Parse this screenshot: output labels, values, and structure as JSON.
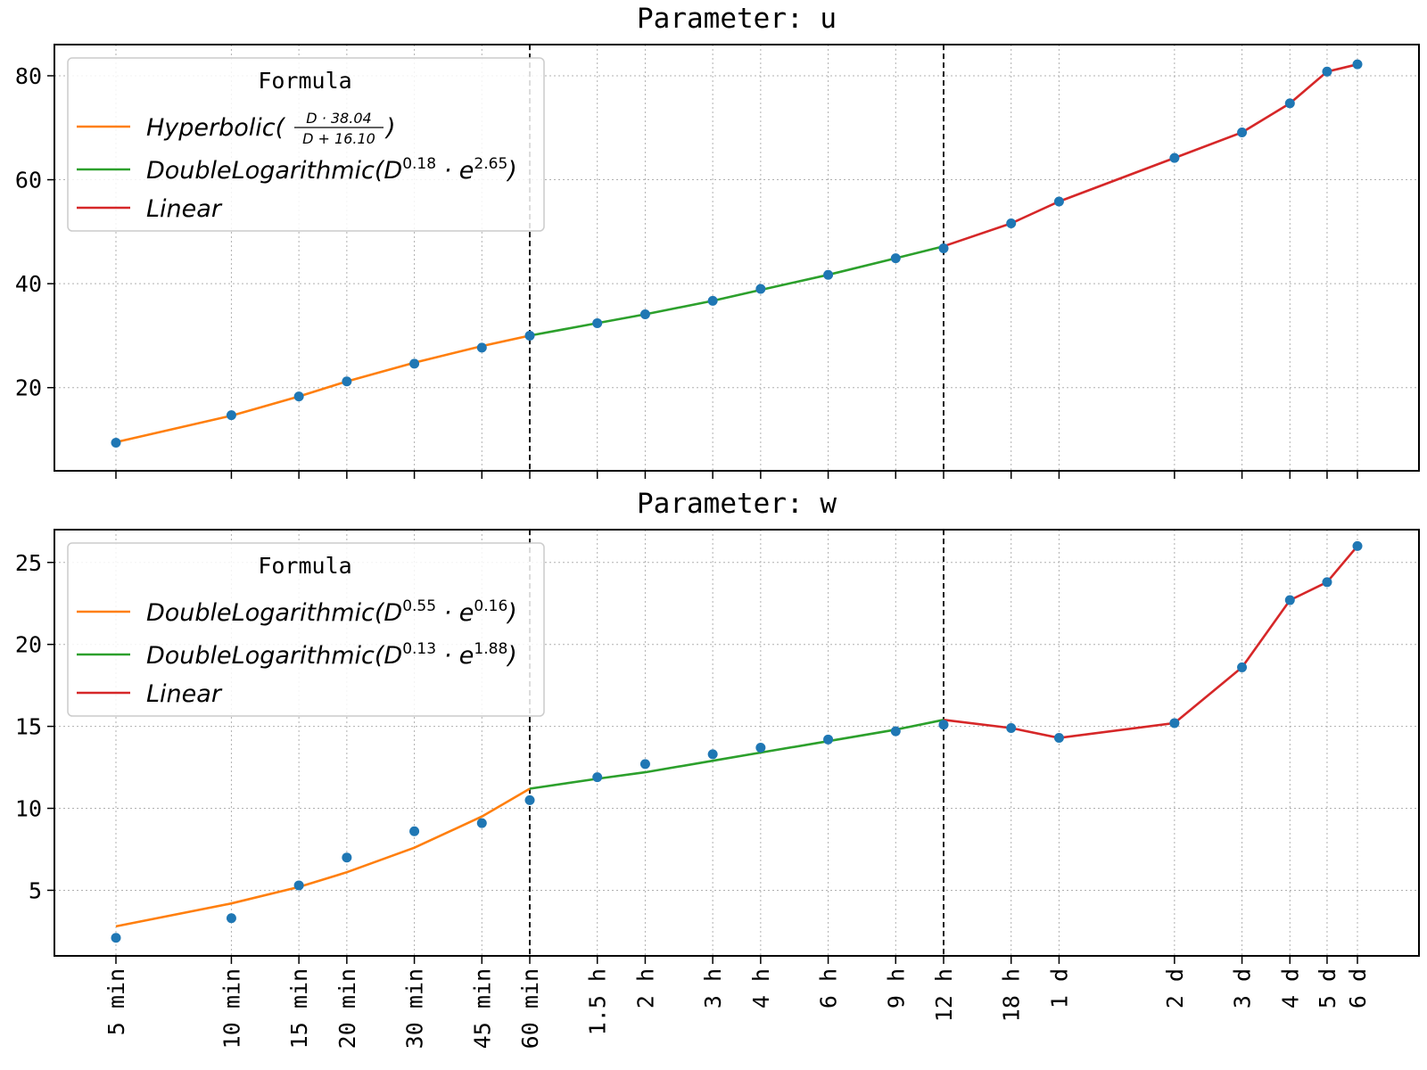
{
  "chart_data": [
    {
      "type": "line",
      "title": "Parameter: u",
      "xlabel": "",
      "ylabel": "",
      "x_tick_labels": [
        "5 min",
        "10 min",
        "15 min",
        "20 min",
        "30 min",
        "45 min",
        "60 min",
        "1.5 h",
        "2 h",
        "3 h",
        "4 h",
        "6 h",
        "9 h",
        "12 h",
        "18 h",
        "1 d",
        "2 d",
        "3 d",
        "4 d",
        "5 d",
        "6 d"
      ],
      "x_scale": "log",
      "x_minutes": [
        5,
        10,
        15,
        20,
        30,
        45,
        60,
        90,
        120,
        180,
        240,
        360,
        540,
        720,
        1080,
        1440,
        2880,
        4320,
        5760,
        7200,
        8640
      ],
      "y_ticks": [
        20,
        40,
        60,
        80
      ],
      "ylim": [
        4,
        86
      ],
      "grid": true,
      "legend": {
        "title": "Formula",
        "placement": "top-left",
        "entries": [
          {
            "name_main": "Hyperbolic(",
            "name_frac_num": "D · 38.04",
            "name_frac_den": "D + 16.10",
            "name_close": ")",
            "color": "#ff7f0e"
          },
          {
            "name_main": "DoubleLogarithmic(D",
            "exp1": "0.18",
            "mid": " · e",
            "exp2": "2.65",
            "name_close": ")",
            "color": "#2ca02c"
          },
          {
            "name_main": "Linear",
            "color": "#d62728"
          }
        ]
      },
      "vlines_at": [
        "60 min",
        "12 h"
      ],
      "points": {
        "color": "#1f77b4",
        "y": [
          9.4,
          14.7,
          18.3,
          21.2,
          24.6,
          27.7,
          30.0,
          32.4,
          34.1,
          36.7,
          39.0,
          41.7,
          44.9,
          46.8,
          51.6,
          55.8,
          64.2,
          69.1,
          74.7,
          80.8,
          82.2
        ]
      },
      "series": [
        {
          "color": "#ff7f0e",
          "x_minutes": [
            5,
            10,
            15,
            20,
            30,
            45,
            60
          ],
          "y": [
            9.5,
            14.6,
            18.3,
            21.2,
            24.8,
            28.0,
            30.0
          ]
        },
        {
          "color": "#2ca02c",
          "x_minutes": [
            60,
            90,
            120,
            180,
            240,
            360,
            540,
            720
          ],
          "y": [
            30.0,
            32.4,
            34.1,
            36.7,
            38.8,
            41.7,
            44.9,
            47.2
          ]
        },
        {
          "color": "#d62728",
          "x_minutes": [
            720,
            1080,
            1440,
            2880,
            4320,
            5760,
            7200,
            8640
          ],
          "y": [
            47.2,
            51.6,
            55.8,
            64.2,
            69.1,
            74.7,
            80.8,
            82.2
          ]
        }
      ]
    },
    {
      "type": "line",
      "title": "Parameter: w",
      "xlabel": "",
      "ylabel": "",
      "x_tick_labels": [
        "5 min",
        "10 min",
        "15 min",
        "20 min",
        "30 min",
        "45 min",
        "60 min",
        "1.5 h",
        "2 h",
        "3 h",
        "4 h",
        "6 h",
        "9 h",
        "12 h",
        "18 h",
        "1 d",
        "2 d",
        "3 d",
        "4 d",
        "5 d",
        "6 d"
      ],
      "x_scale": "log",
      "x_minutes": [
        5,
        10,
        15,
        20,
        30,
        45,
        60,
        90,
        120,
        180,
        240,
        360,
        540,
        720,
        1080,
        1440,
        2880,
        4320,
        5760,
        7200,
        8640
      ],
      "y_ticks": [
        5,
        10,
        15,
        20,
        25
      ],
      "ylim": [
        1,
        27
      ],
      "grid": true,
      "legend": {
        "title": "Formula",
        "placement": "top-left",
        "entries": [
          {
            "name_main": "DoubleLogarithmic(D",
            "exp1": "0.55",
            "mid": " · e",
            "exp2": "0.16",
            "name_close": ")",
            "color": "#ff7f0e"
          },
          {
            "name_main": "DoubleLogarithmic(D",
            "exp1": "0.13",
            "mid": " · e",
            "exp2": "1.88",
            "name_close": ")",
            "color": "#2ca02c"
          },
          {
            "name_main": "Linear",
            "color": "#d62728"
          }
        ]
      },
      "vlines_at": [
        "60 min",
        "12 h"
      ],
      "points": {
        "color": "#1f77b4",
        "y": [
          2.1,
          3.3,
          5.3,
          7.0,
          8.6,
          9.1,
          10.5,
          11.9,
          12.7,
          13.3,
          13.7,
          14.2,
          14.7,
          15.1,
          14.9,
          14.3,
          15.2,
          18.6,
          22.7,
          23.8,
          26.0
        ]
      },
      "series": [
        {
          "color": "#ff7f0e",
          "x_minutes": [
            5,
            10,
            15,
            20,
            30,
            45,
            60
          ],
          "y": [
            2.8,
            4.2,
            5.2,
            6.1,
            7.6,
            9.5,
            11.2
          ]
        },
        {
          "color": "#2ca02c",
          "x_minutes": [
            60,
            90,
            120,
            180,
            240,
            360,
            540,
            720
          ],
          "y": [
            11.2,
            11.8,
            12.2,
            12.9,
            13.4,
            14.1,
            14.8,
            15.4
          ]
        },
        {
          "color": "#d62728",
          "x_minutes": [
            720,
            1080,
            1440,
            2880,
            4320,
            5760,
            7200,
            8640
          ],
          "y": [
            15.4,
            14.9,
            14.3,
            15.2,
            18.6,
            22.7,
            23.8,
            26.0
          ]
        }
      ]
    }
  ]
}
